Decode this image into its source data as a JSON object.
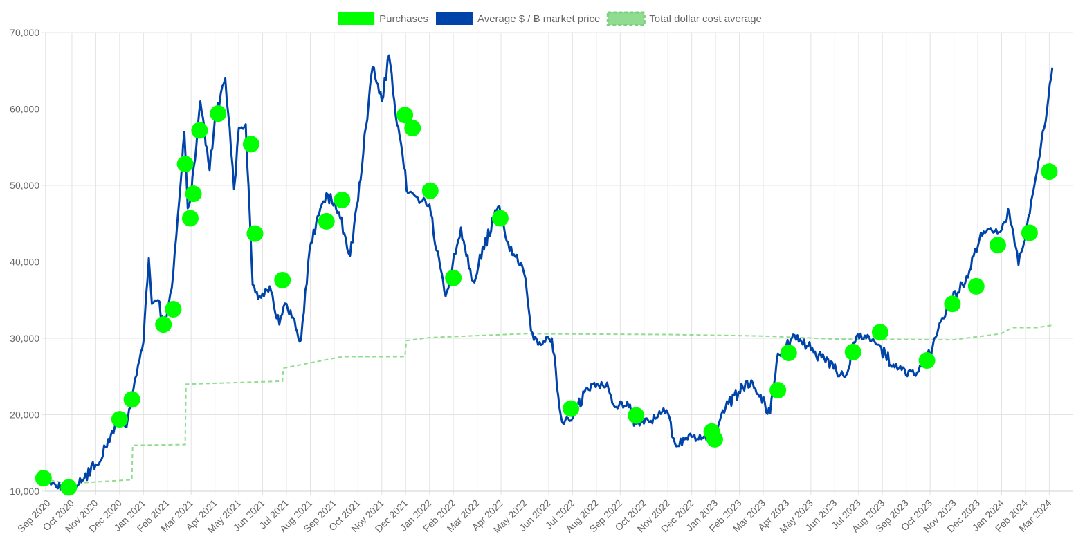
{
  "chart_data": {
    "type": "line",
    "legend": {
      "placement": "top-center",
      "items": [
        {
          "label": "Purchases",
          "color": "#00ff00",
          "style": "filled-box"
        },
        {
          "label": "Average $ / Ƀ market price",
          "color": "#0044aa",
          "style": "filled-box"
        },
        {
          "label": "Total dollar cost average",
          "color": "#90dc90",
          "style": "dashed-box"
        }
      ]
    },
    "y_axis": {
      "min": 10000,
      "max": 70000,
      "ticks": [
        "10,000",
        "20,000",
        "30,000",
        "40,000",
        "50,000",
        "60,000",
        "70,000"
      ],
      "tick_values": [
        10000,
        20000,
        30000,
        40000,
        50000,
        60000,
        70000
      ]
    },
    "x_axis": {
      "ticks": [
        "Sep 2020",
        "Oct 2020",
        "Nov 2020",
        "Dec 2020",
        "Jan 2021",
        "Feb 2021",
        "Mar 2021",
        "Apr 2021",
        "May 2021",
        "Jun 2021",
        "Jul 2021",
        "Aug 2021",
        "Sep 2021",
        "Oct 2021",
        "Nov 2021",
        "Dec 2021",
        "Jan 2022",
        "Feb 2022",
        "Mar 2022",
        "Apr 2022",
        "May 2022",
        "Jun 2022",
        "Jul 2022",
        "Aug 2022",
        "Sep 2022",
        "Oct 2022",
        "Nov 2022",
        "Dec 2022",
        "Jan 2023",
        "Feb 2023",
        "Mar 2023",
        "Apr 2023",
        "May 2023",
        "Jun 2023",
        "Jul 2023",
        "Aug 2023",
        "Sep 2023",
        "Oct 2023",
        "Nov 2023",
        "Dec 2023",
        "Jan 2024",
        "Feb 2024",
        "Mar 2024"
      ],
      "tick_label_rotation_deg": -45
    },
    "grid": true,
    "series": [
      {
        "name": "Purchases",
        "kind": "scatter",
        "color": "#00ff00",
        "points": [
          {
            "x": "2020-08-26",
            "y": 11700
          },
          {
            "x": "2020-09-27",
            "y": 10500
          },
          {
            "x": "2020-12-01",
            "y": 19400
          },
          {
            "x": "2020-12-17",
            "y": 22000
          },
          {
            "x": "2021-01-27",
            "y": 31800
          },
          {
            "x": "2021-02-08",
            "y": 33800
          },
          {
            "x": "2021-02-22",
            "y": 52800
          },
          {
            "x": "2021-02-28",
            "y": 45700
          },
          {
            "x": "2021-03-04",
            "y": 48900
          },
          {
            "x": "2021-03-12",
            "y": 57200
          },
          {
            "x": "2021-04-05",
            "y": 59400
          },
          {
            "x": "2021-05-17",
            "y": 55400
          },
          {
            "x": "2021-05-22",
            "y": 43700
          },
          {
            "x": "2021-06-26",
            "y": 37600
          },
          {
            "x": "2021-08-22",
            "y": 45300
          },
          {
            "x": "2021-09-11",
            "y": 48100
          },
          {
            "x": "2021-11-30",
            "y": 59200
          },
          {
            "x": "2021-12-10",
            "y": 57500
          },
          {
            "x": "2022-01-02",
            "y": 49300
          },
          {
            "x": "2022-02-01",
            "y": 37900
          },
          {
            "x": "2022-03-31",
            "y": 45700
          },
          {
            "x": "2022-06-29",
            "y": 20800
          },
          {
            "x": "2022-09-21",
            "y": 19900
          },
          {
            "x": "2022-12-27",
            "y": 17800
          },
          {
            "x": "2022-12-31",
            "y": 16800
          },
          {
            "x": "2023-03-20",
            "y": 23200
          },
          {
            "x": "2023-04-03",
            "y": 28100
          },
          {
            "x": "2023-06-24",
            "y": 28200
          },
          {
            "x": "2023-07-29",
            "y": 30800
          },
          {
            "x": "2023-09-27",
            "y": 27100
          },
          {
            "x": "2023-10-30",
            "y": 34500
          },
          {
            "x": "2023-11-29",
            "y": 36800
          },
          {
            "x": "2023-12-27",
            "y": 42200
          },
          {
            "x": "2024-02-06",
            "y": 43800
          },
          {
            "x": "2024-03-01",
            "y": 51800
          }
        ]
      },
      {
        "name": "Average $ / Ƀ market price",
        "kind": "line",
        "color": "#0044aa",
        "points": [
          {
            "x": "2020-08-26",
            "y": 11500
          },
          {
            "x": "2020-09-01",
            "y": 11800
          },
          {
            "x": "2020-09-10",
            "y": 10900
          },
          {
            "x": "2020-09-20",
            "y": 10500
          },
          {
            "x": "2020-10-01",
            "y": 10700
          },
          {
            "x": "2020-10-15",
            "y": 11400
          },
          {
            "x": "2020-11-01",
            "y": 13500
          },
          {
            "x": "2020-11-15",
            "y": 15800
          },
          {
            "x": "2020-11-25",
            "y": 18500
          },
          {
            "x": "2020-12-01",
            "y": 19100
          },
          {
            "x": "2020-12-10",
            "y": 18400
          },
          {
            "x": "2020-12-17",
            "y": 22500
          },
          {
            "x": "2020-12-25",
            "y": 26500
          },
          {
            "x": "2021-01-01",
            "y": 29500
          },
          {
            "x": "2021-01-08",
            "y": 40500
          },
          {
            "x": "2021-01-12",
            "y": 34500
          },
          {
            "x": "2021-01-20",
            "y": 35000
          },
          {
            "x": "2021-01-27",
            "y": 31500
          },
          {
            "x": "2021-02-01",
            "y": 33500
          },
          {
            "x": "2021-02-08",
            "y": 38500
          },
          {
            "x": "2021-02-15",
            "y": 48000
          },
          {
            "x": "2021-02-21",
            "y": 57000
          },
          {
            "x": "2021-02-25",
            "y": 47000
          },
          {
            "x": "2021-03-01",
            "y": 48500
          },
          {
            "x": "2021-03-13",
            "y": 61000
          },
          {
            "x": "2021-03-25",
            "y": 52000
          },
          {
            "x": "2021-04-01",
            "y": 58800
          },
          {
            "x": "2021-04-14",
            "y": 64000
          },
          {
            "x": "2021-04-25",
            "y": 49500
          },
          {
            "x": "2021-05-01",
            "y": 57500
          },
          {
            "x": "2021-05-10",
            "y": 58000
          },
          {
            "x": "2021-05-19",
            "y": 37000
          },
          {
            "x": "2021-05-28",
            "y": 35500
          },
          {
            "x": "2021-06-10",
            "y": 36800
          },
          {
            "x": "2021-06-22",
            "y": 31800
          },
          {
            "x": "2021-07-01",
            "y": 34500
          },
          {
            "x": "2021-07-20",
            "y": 29800
          },
          {
            "x": "2021-07-31",
            "y": 41500
          },
          {
            "x": "2021-08-14",
            "y": 47000
          },
          {
            "x": "2021-08-22",
            "y": 49000
          },
          {
            "x": "2021-09-07",
            "y": 46500
          },
          {
            "x": "2021-09-21",
            "y": 40800
          },
          {
            "x": "2021-10-01",
            "y": 48000
          },
          {
            "x": "2021-10-20",
            "y": 65500
          },
          {
            "x": "2021-11-01",
            "y": 61000
          },
          {
            "x": "2021-11-10",
            "y": 67000
          },
          {
            "x": "2021-11-20",
            "y": 58000
          },
          {
            "x": "2021-12-04",
            "y": 49000
          },
          {
            "x": "2021-12-15",
            "y": 48500
          },
          {
            "x": "2022-01-01",
            "y": 47500
          },
          {
            "x": "2022-01-10",
            "y": 41500
          },
          {
            "x": "2022-01-22",
            "y": 35500
          },
          {
            "x": "2022-02-10",
            "y": 44500
          },
          {
            "x": "2022-02-24",
            "y": 37500
          },
          {
            "x": "2022-03-28",
            "y": 47200
          },
          {
            "x": "2022-04-10",
            "y": 42500
          },
          {
            "x": "2022-04-30",
            "y": 38500
          },
          {
            "x": "2022-05-09",
            "y": 31000
          },
          {
            "x": "2022-05-20",
            "y": 29500
          },
          {
            "x": "2022-06-05",
            "y": 30000
          },
          {
            "x": "2022-06-13",
            "y": 22500
          },
          {
            "x": "2022-06-18",
            "y": 19000
          },
          {
            "x": "2022-07-01",
            "y": 19500
          },
          {
            "x": "2022-07-20",
            "y": 23500
          },
          {
            "x": "2022-08-15",
            "y": 24200
          },
          {
            "x": "2022-08-25",
            "y": 21000
          },
          {
            "x": "2022-09-10",
            "y": 21700
          },
          {
            "x": "2022-09-20",
            "y": 18900
          },
          {
            "x": "2022-10-10",
            "y": 19200
          },
          {
            "x": "2022-10-30",
            "y": 20600
          },
          {
            "x": "2022-11-10",
            "y": 16200
          },
          {
            "x": "2022-12-01",
            "y": 17100
          },
          {
            "x": "2022-12-31",
            "y": 16600
          },
          {
            "x": "2023-01-14",
            "y": 20900
          },
          {
            "x": "2023-01-31",
            "y": 23000
          },
          {
            "x": "2023-02-15",
            "y": 24500
          },
          {
            "x": "2023-03-10",
            "y": 20200
          },
          {
            "x": "2023-03-20",
            "y": 28000
          },
          {
            "x": "2023-04-14",
            "y": 30400
          },
          {
            "x": "2023-05-01",
            "y": 28500
          },
          {
            "x": "2023-05-20",
            "y": 26900
          },
          {
            "x": "2023-06-15",
            "y": 25100
          },
          {
            "x": "2023-06-30",
            "y": 30500
          },
          {
            "x": "2023-07-20",
            "y": 29900
          },
          {
            "x": "2023-08-17",
            "y": 26200
          },
          {
            "x": "2023-09-11",
            "y": 25200
          },
          {
            "x": "2023-10-01",
            "y": 27900
          },
          {
            "x": "2023-10-24",
            "y": 34500
          },
          {
            "x": "2023-11-15",
            "y": 37200
          },
          {
            "x": "2023-12-05",
            "y": 43800
          },
          {
            "x": "2024-01-01",
            "y": 44200
          },
          {
            "x": "2024-01-11",
            "y": 46500
          },
          {
            "x": "2024-01-23",
            "y": 39600
          },
          {
            "x": "2024-02-01",
            "y": 43000
          },
          {
            "x": "2024-02-15",
            "y": 51800
          },
          {
            "x": "2024-02-29",
            "y": 61500
          },
          {
            "x": "2024-03-05",
            "y": 65400
          }
        ]
      },
      {
        "name": "Total dollar cost average",
        "kind": "line-dashed",
        "color": "#90dc90",
        "points": [
          {
            "x": "2020-08-26",
            "y": 11600
          },
          {
            "x": "2020-09-27",
            "y": 11000
          },
          {
            "x": "2020-12-17",
            "y": 11500
          },
          {
            "x": "2020-12-18",
            "y": 16000
          },
          {
            "x": "2021-02-22",
            "y": 16100
          },
          {
            "x": "2021-02-23",
            "y": 24000
          },
          {
            "x": "2021-06-26",
            "y": 24400
          },
          {
            "x": "2021-06-27",
            "y": 26100
          },
          {
            "x": "2021-09-11",
            "y": 27600
          },
          {
            "x": "2021-11-30",
            "y": 27600
          },
          {
            "x": "2021-12-02",
            "y": 29700
          },
          {
            "x": "2022-01-02",
            "y": 30100
          },
          {
            "x": "2022-04-30",
            "y": 30600
          },
          {
            "x": "2022-10-31",
            "y": 30500
          },
          {
            "x": "2023-03-01",
            "y": 30300
          },
          {
            "x": "2023-06-01",
            "y": 29900
          },
          {
            "x": "2023-10-31",
            "y": 29800
          },
          {
            "x": "2023-12-31",
            "y": 30600
          },
          {
            "x": "2024-01-15",
            "y": 31400
          },
          {
            "x": "2024-02-15",
            "y": 31400
          },
          {
            "x": "2024-03-05",
            "y": 31700
          }
        ]
      }
    ]
  }
}
